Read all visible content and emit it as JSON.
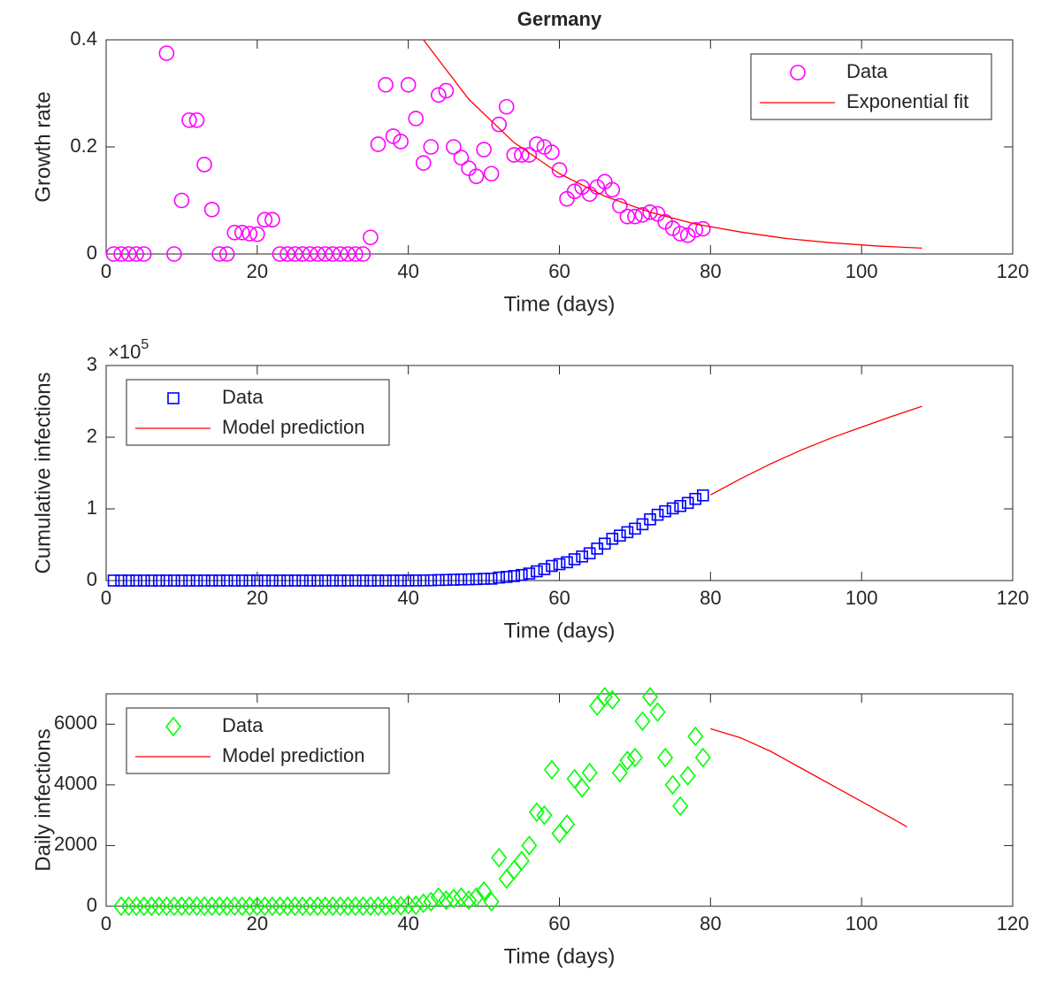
{
  "chart_data": [
    {
      "type": "line",
      "title": "Germany",
      "xlabel": "Time (days)",
      "ylabel": "Growth rate",
      "xlim": [
        0,
        120
      ],
      "xticks": [
        0,
        20,
        40,
        60,
        80,
        100,
        120
      ],
      "ylim": [
        0,
        0.4
      ],
      "yticks": [
        0,
        0.2,
        0.4
      ],
      "legend": "northeast",
      "series": [
        {
          "name": "Data",
          "color": "#ff00ff",
          "marker": "circle",
          "x": [
            1,
            2,
            3,
            4,
            5,
            8,
            9,
            10,
            11,
            12,
            13,
            14,
            15,
            16,
            17,
            18,
            19,
            20,
            21,
            22,
            23,
            24,
            25,
            26,
            27,
            28,
            29,
            30,
            31,
            32,
            33,
            34,
            35,
            36,
            37,
            38,
            39,
            40,
            41,
            42,
            43,
            44,
            45,
            46,
            47,
            48,
            49,
            50,
            51,
            52,
            53,
            54,
            55,
            56,
            57,
            58,
            59,
            60,
            61,
            62,
            63,
            64,
            65,
            66,
            67,
            68,
            69,
            70,
            71,
            72,
            73,
            74,
            75,
            76,
            77,
            78,
            79
          ],
          "values": [
            0,
            0,
            0,
            0,
            0,
            0.375,
            0,
            0.1,
            0.25,
            0.25,
            0.167,
            0.083,
            0,
            0,
            0.04,
            0.04,
            0.038,
            0.037,
            0.064,
            0.064,
            0,
            0,
            0,
            0,
            0,
            0,
            0,
            0,
            0,
            0,
            0,
            0,
            0.031,
            0.205,
            0.316,
            0.22,
            0.21,
            0.316,
            0.253,
            0.17,
            0.2,
            0.297,
            0.305,
            0.2,
            0.18,
            0.16,
            0.145,
            0.195,
            0.15,
            0.242,
            0.275,
            0.185,
            0.185,
            0.185,
            0.205,
            0.2,
            0.19,
            0.157,
            0.103,
            0.117,
            0.125,
            0.112,
            0.125,
            0.135,
            0.12,
            0.09,
            0.07,
            0.07,
            0.073,
            0.078,
            0.075,
            0.06,
            0.048,
            0.038,
            0.035,
            0.045,
            0.047
          ]
        },
        {
          "name": "Exponential fit",
          "color": "#ff0000",
          "marker": "none",
          "x": [
            42,
            48,
            54,
            60,
            66,
            72,
            78,
            84,
            90,
            96,
            102,
            108
          ],
          "values": [
            0.4,
            0.289,
            0.208,
            0.15,
            0.108,
            0.078,
            0.056,
            0.041,
            0.029,
            0.021,
            0.015,
            0.011
          ]
        }
      ]
    },
    {
      "type": "line",
      "xlabel": "Time (days)",
      "ylabel": "Cumulative infections",
      "yscale_base": "×10",
      "yscale_exponent": "5",
      "xlim": [
        0,
        120
      ],
      "xticks": [
        0,
        20,
        40,
        60,
        80,
        100,
        120
      ],
      "ylim": [
        0,
        300000
      ],
      "yticks": [
        {
          "value": 0,
          "label": "0"
        },
        {
          "value": 100000,
          "label": "1"
        },
        {
          "value": 200000,
          "label": "2"
        },
        {
          "value": 300000,
          "label": "3"
        }
      ],
      "legend": "northwest",
      "series": [
        {
          "name": "Data",
          "color": "#0000ff",
          "marker": "square",
          "x": [
            1,
            2,
            3,
            4,
            5,
            6,
            7,
            8,
            9,
            10,
            11,
            12,
            13,
            14,
            15,
            16,
            17,
            18,
            19,
            20,
            21,
            22,
            23,
            24,
            25,
            26,
            27,
            28,
            29,
            30,
            31,
            32,
            33,
            34,
            35,
            36,
            37,
            38,
            39,
            40,
            41,
            42,
            43,
            44,
            45,
            46,
            47,
            48,
            49,
            50,
            51,
            52,
            53,
            54,
            55,
            56,
            57,
            58,
            59,
            60,
            61,
            62,
            63,
            64,
            65,
            66,
            67,
            68,
            69,
            70,
            71,
            72,
            73,
            74,
            75,
            76,
            77,
            78,
            79
          ],
          "values": [
            1,
            1,
            1,
            1,
            1,
            1,
            1,
            4,
            4,
            5,
            8,
            10,
            12,
            13,
            14,
            14,
            16,
            16,
            16,
            16,
            16,
            16,
            16,
            16,
            16,
            16,
            16,
            16,
            16,
            16,
            16,
            16,
            16,
            16,
            18,
            21,
            26,
            53,
            66,
            117,
            150,
            250,
            400,
            700,
            900,
            1150,
            1450,
            1650,
            1950,
            2450,
            2600,
            4200,
            5100,
            6300,
            7800,
            9800,
            12900,
            15900,
            20400,
            22800,
            25500,
            29700,
            33600,
            38000,
            44600,
            51500,
            58300,
            62700,
            67500,
            72400,
            78500,
            85400,
            91800,
            96700,
            100700,
            104000,
            108300,
            113900,
            118800
          ]
        },
        {
          "name": "Model prediction",
          "color": "#ff0000",
          "marker": "none",
          "x": [
            80,
            84,
            88,
            92,
            96,
            100,
            104,
            108
          ],
          "values": [
            119500,
            142000,
            163000,
            182000,
            199000,
            214000,
            229000,
            243000
          ]
        }
      ]
    },
    {
      "type": "line",
      "xlabel": "Time (days)",
      "ylabel": "Daily infections",
      "xlim": [
        0,
        120
      ],
      "xticks": [
        0,
        20,
        40,
        60,
        80,
        100,
        120
      ],
      "ylim": [
        0,
        7000
      ],
      "yticks": [
        0,
        2000,
        4000,
        6000
      ],
      "legend": "northwest",
      "series": [
        {
          "name": "Data",
          "color": "#00ff00",
          "marker": "diamond",
          "x": [
            2,
            3,
            4,
            5,
            6,
            7,
            8,
            9,
            10,
            11,
            12,
            13,
            14,
            15,
            16,
            17,
            18,
            19,
            20,
            21,
            22,
            23,
            24,
            25,
            26,
            27,
            28,
            29,
            30,
            31,
            32,
            33,
            34,
            35,
            36,
            37,
            38,
            39,
            40,
            41,
            42,
            43,
            44,
            45,
            46,
            47,
            48,
            49,
            50,
            51,
            52,
            53,
            54,
            55,
            56,
            57,
            58,
            59,
            60,
            61,
            62,
            63,
            64,
            65,
            66,
            67,
            68,
            69,
            70,
            71,
            72,
            73,
            74,
            75,
            76,
            77,
            78,
            79
          ],
          "values": [
            0,
            0,
            0,
            0,
            0,
            0,
            3,
            0,
            1,
            3,
            2,
            2,
            1,
            1,
            0,
            2,
            0,
            0,
            0,
            0,
            0,
            0,
            0,
            0,
            0,
            0,
            0,
            0,
            0,
            0,
            0,
            0,
            0,
            2,
            3,
            5,
            27,
            13,
            51,
            33,
            100,
            150,
            300,
            200,
            250,
            300,
            200,
            300,
            500,
            150,
            1600,
            900,
            1200,
            1500,
            2000,
            3100,
            3000,
            4500,
            2400,
            2700,
            4200,
            3900,
            4400,
            6600,
            6900,
            6800,
            4400,
            4800,
            4900,
            6100,
            6900,
            6400,
            4900,
            4000,
            3300,
            4300,
            5600,
            4900
          ]
        },
        {
          "name": "Model prediction",
          "color": "#ff0000",
          "marker": "none",
          "x": [
            80,
            84,
            88,
            92,
            96,
            100,
            104,
            106
          ],
          "values": [
            5850,
            5550,
            5100,
            4550,
            4000,
            3450,
            2900,
            2620
          ]
        }
      ]
    }
  ]
}
